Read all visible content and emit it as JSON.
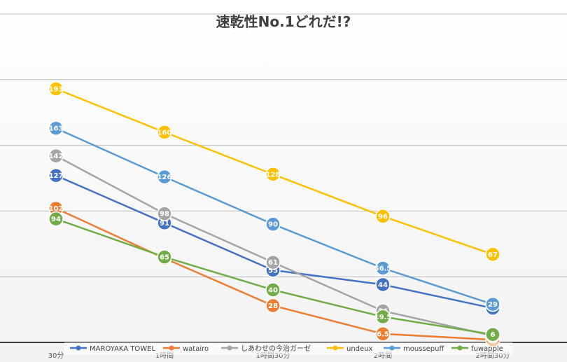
{
  "chart_data": {
    "type": "line",
    "title": "速乾性No.1どれだ!?",
    "xlabel": "",
    "ylabel": "",
    "categories": [
      "30分",
      "1時間",
      "1時間30分",
      "2時間",
      "2時間30分"
    ],
    "ylim": [
      0,
      250
    ],
    "grid": true,
    "legend_position": "bottom",
    "series": [
      {
        "name": "MAROYAKA TOWEL",
        "color": "#4472C4",
        "values": [
          127,
          91,
          55,
          44,
          26
        ],
        "labels": [
          "127",
          "91",
          "55",
          "44",
          "26"
        ]
      },
      {
        "name": "watairo",
        "color": "#ED7D31",
        "values": [
          102,
          64,
          28,
          6.5,
          2
        ],
        "labels": [
          "102",
          "64",
          "28",
          "6.5",
          "2"
        ]
      },
      {
        "name": "しあわせの今治ガーゼ",
        "color": "#A5A5A5",
        "values": [
          142,
          98,
          61,
          24,
          5
        ],
        "labels": [
          "142",
          "98",
          "61",
          "24",
          "5"
        ]
      },
      {
        "name": "undeux",
        "color": "#FFC000",
        "values": [
          193,
          160,
          128,
          96,
          67
        ],
        "labels": [
          "193",
          "160",
          "128",
          "96",
          "67"
        ]
      },
      {
        "name": "moussepuff",
        "color": "#5B9BD5",
        "values": [
          163,
          126,
          90,
          56.5,
          29
        ],
        "labels": [
          "163",
          "126",
          "90",
          "56.5",
          "29"
        ]
      },
      {
        "name": "fuwapple",
        "color": "#70AD47",
        "values": [
          94,
          65,
          40,
          19.5,
          6
        ],
        "labels": [
          "94",
          "65",
          "40",
          "19.5",
          "6"
        ]
      }
    ]
  }
}
